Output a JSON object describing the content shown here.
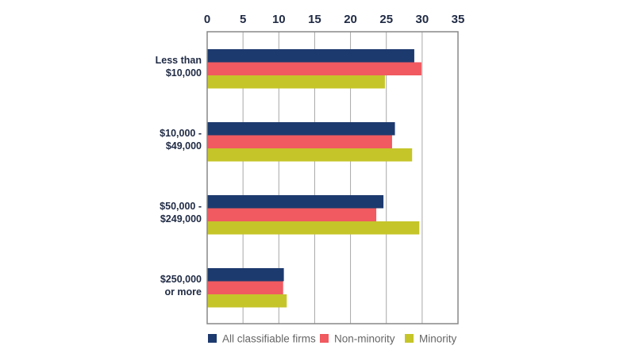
{
  "chart_data": {
    "type": "bar",
    "orientation": "horizontal",
    "title": "",
    "xlabel": "",
    "ylabel": "",
    "xlim": [
      0,
      35
    ],
    "x_ticks": [
      0,
      5,
      10,
      15,
      20,
      25,
      30,
      35
    ],
    "x_tick_labels": [
      "0",
      "5",
      "10",
      "15",
      "20",
      "25",
      "30",
      "35"
    ],
    "x_axis_position": "top",
    "grid": true,
    "legend_position": "bottom",
    "categories": [
      [
        "Less than",
        "$10,000"
      ],
      [
        "$10,000 -",
        "$49,000"
      ],
      [
        "$50,000 -",
        "$249,000"
      ],
      [
        "$250,000",
        "or more"
      ]
    ],
    "series": [
      {
        "name": "All classifiable firms",
        "color": "#1d3a6e",
        "values": [
          28.9,
          26.2,
          24.6,
          10.7
        ]
      },
      {
        "name": "Non-minority",
        "color": "#f05a60",
        "values": [
          29.9,
          25.8,
          23.6,
          10.6
        ]
      },
      {
        "name": "Minority",
        "color": "#c5c52a",
        "values": [
          24.8,
          28.6,
          29.6,
          11.1
        ]
      }
    ]
  }
}
